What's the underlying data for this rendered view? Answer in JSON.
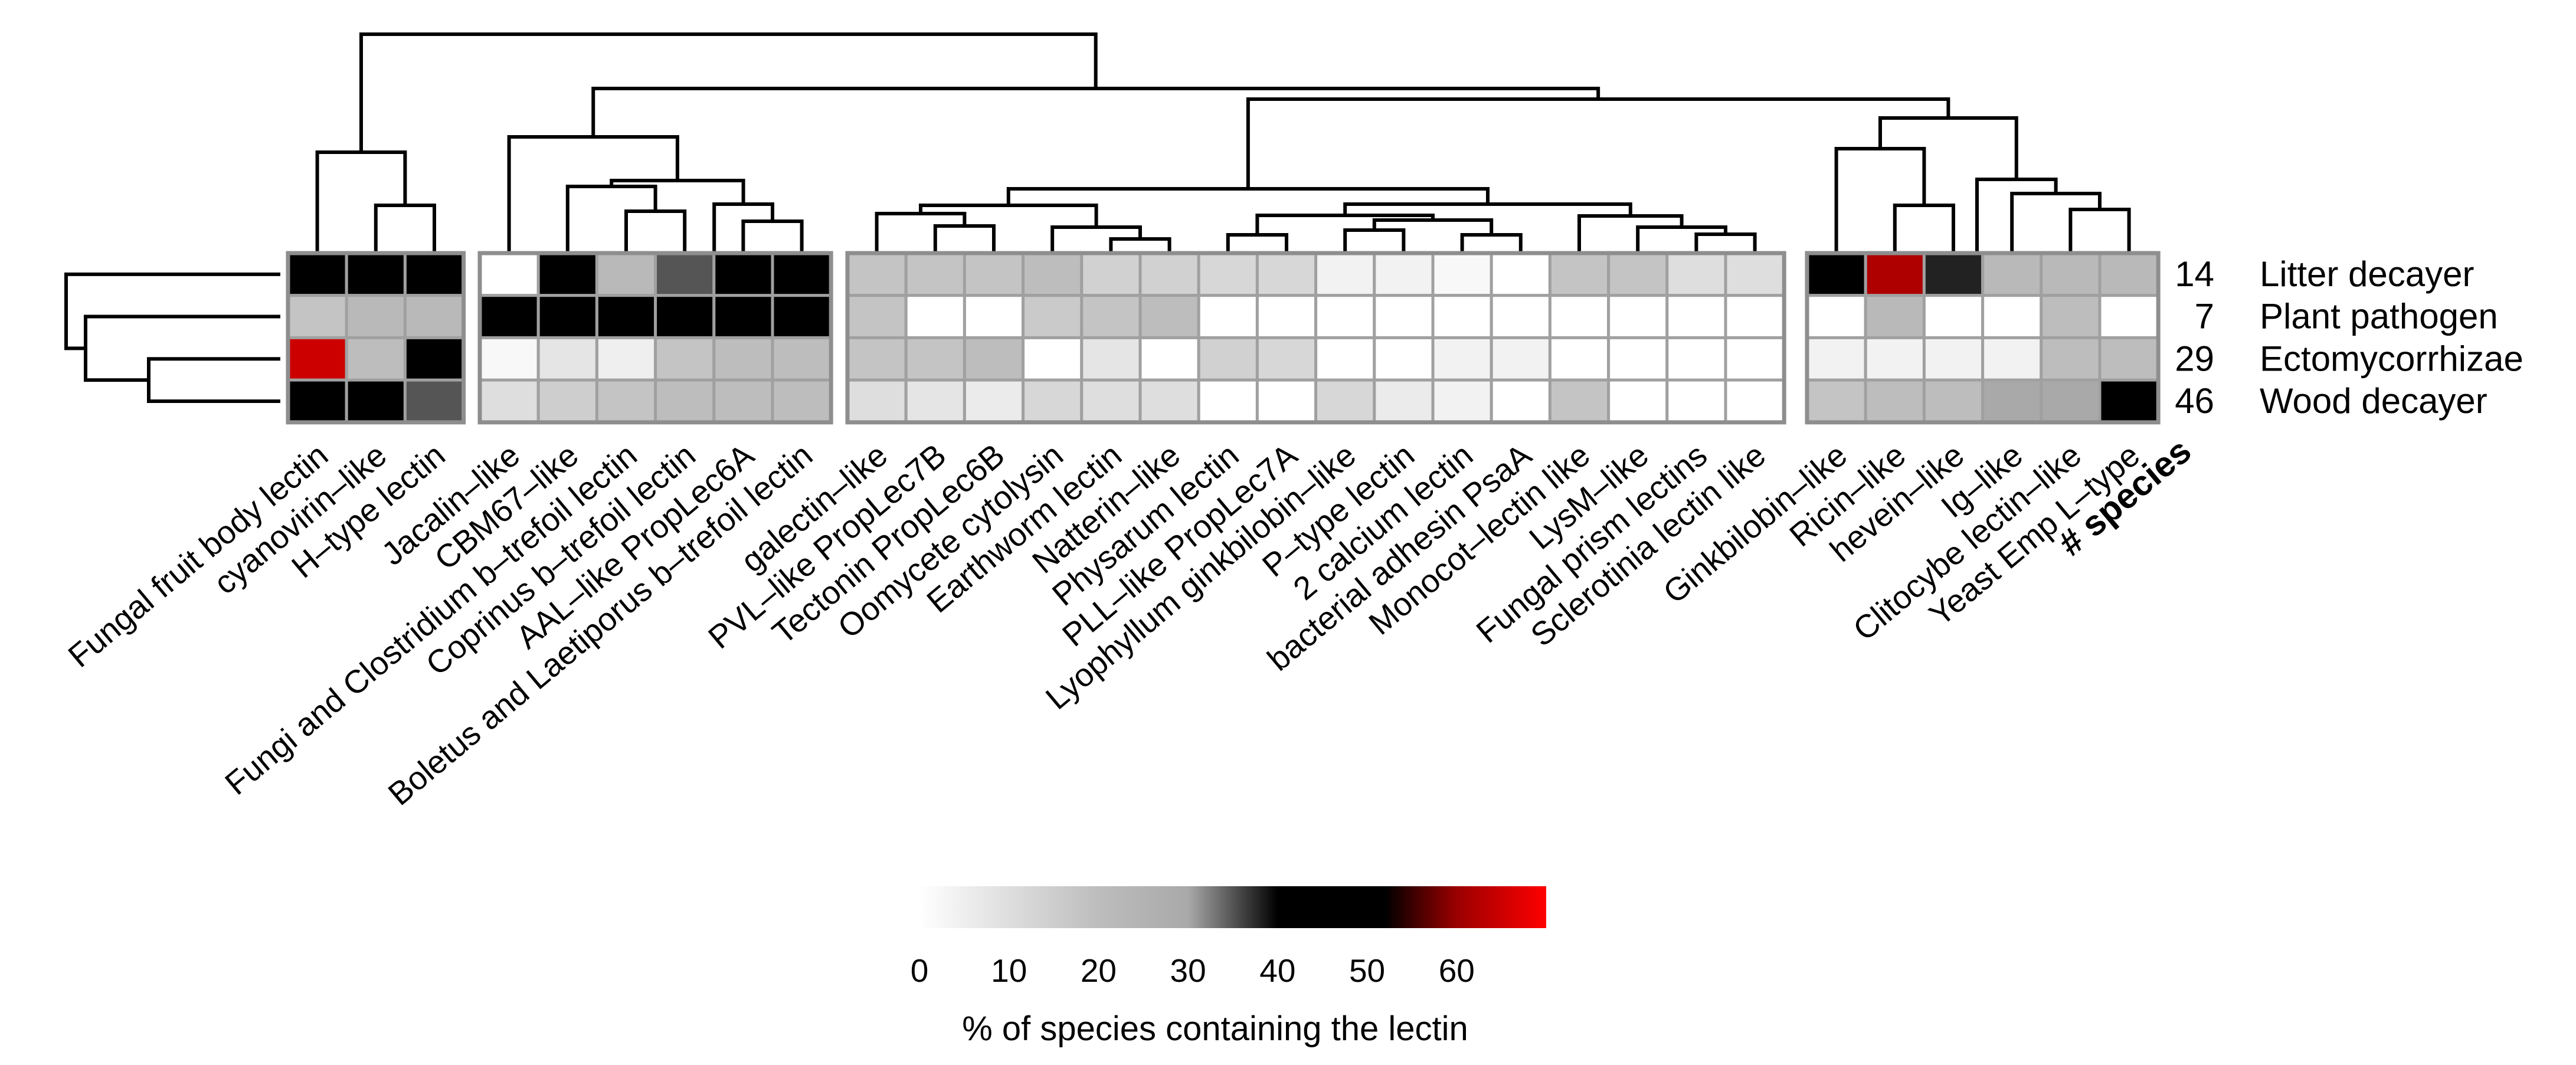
{
  "chart_data": {
    "type": "heatmap",
    "species_header": "# species",
    "rows": [
      {
        "count": "14",
        "name": "Litter decayer"
      },
      {
        "count": "7",
        "name": "Plant pathogen"
      },
      {
        "count": "29",
        "name": "Ectomycorrhizae"
      },
      {
        "count": "46",
        "name": "Wood decayer"
      }
    ],
    "groups": [
      {
        "columns": [
          "Fungal fruit body lectin",
          "cyanovirin–like",
          "H–type lectin"
        ],
        "values": [
          [
            45,
            45,
            45
          ],
          [
            18,
            22,
            22
          ],
          [
            65,
            20,
            45
          ],
          [
            45,
            45,
            35
          ]
        ]
      },
      {
        "columns": [
          "Jacalin–like",
          "CBM67–like",
          "Fungi and Clostridium b–trefoil lectin",
          "Coprinus b–trefoil lectin",
          "AAL–like PropLec6A",
          "Boletus and Laetiporus b–trefoil lectin"
        ],
        "values": [
          [
            0,
            45,
            22,
            35,
            45,
            45
          ],
          [
            45,
            45,
            45,
            52,
            45,
            45
          ],
          [
            2,
            8,
            5,
            18,
            20,
            20
          ],
          [
            10,
            15,
            18,
            20,
            20,
            20
          ]
        ]
      },
      {
        "columns": [
          "galectin–like",
          "PVL–like PropLec7B",
          "Tectonin PropLec6B",
          "Oomycete cytolysin",
          "Earthworm lectin",
          "Natterin–like",
          "Physarum lectin",
          "PLL–like PropLec7A",
          "Lyophyllum ginkbilobin–like",
          "P–type lectin",
          "2 calcium lectin",
          "bacterial adhesin PsaA",
          "Monocot–lectin like",
          "LysM–like",
          "Fungal prism lectins",
          "Sclerotinia lectin like"
        ],
        "values": [
          [
            18,
            18,
            18,
            20,
            14,
            14,
            12,
            12,
            4,
            4,
            2,
            0,
            18,
            18,
            10,
            10
          ],
          [
            18,
            0,
            0,
            16,
            18,
            20,
            0,
            0,
            0,
            0,
            0,
            0,
            0,
            0,
            0,
            0
          ],
          [
            18,
            18,
            20,
            0,
            8,
            0,
            14,
            12,
            0,
            0,
            4,
            4,
            0,
            0,
            0,
            0
          ],
          [
            10,
            8,
            6,
            12,
            10,
            10,
            0,
            0,
            12,
            6,
            4,
            0,
            18,
            0,
            0,
            0
          ]
        ]
      },
      {
        "columns": [
          "Ginkbilobin–like",
          "Ricin–like",
          "hevein–like",
          "Ig–like",
          "Clitocybe lectin–like",
          "Yeast Emp L–type"
        ],
        "values": [
          [
            45,
            62,
            38,
            22,
            22,
            22
          ],
          [
            0,
            22,
            0,
            0,
            20,
            0
          ],
          [
            4,
            4,
            4,
            4,
            20,
            20
          ],
          [
            18,
            20,
            20,
            30,
            30,
            45
          ]
        ]
      }
    ],
    "colorbar": {
      "ticks": [
        "0",
        "10",
        "20",
        "30",
        "40",
        "50",
        "60"
      ],
      "label": "% of species containing the lectin",
      "range": [
        0,
        70
      ],
      "stops": [
        {
          "value": 0,
          "color": "#ffffff"
        },
        {
          "value": 20,
          "color": "#bdbdbd"
        },
        {
          "value": 30,
          "color": "#a9a9a9"
        },
        {
          "value": 40,
          "color": "#000000"
        },
        {
          "value": 52,
          "color": "#000000"
        },
        {
          "value": 60,
          "color": "#9b0000"
        },
        {
          "value": 70,
          "color": "#ff0000"
        }
      ]
    }
  }
}
